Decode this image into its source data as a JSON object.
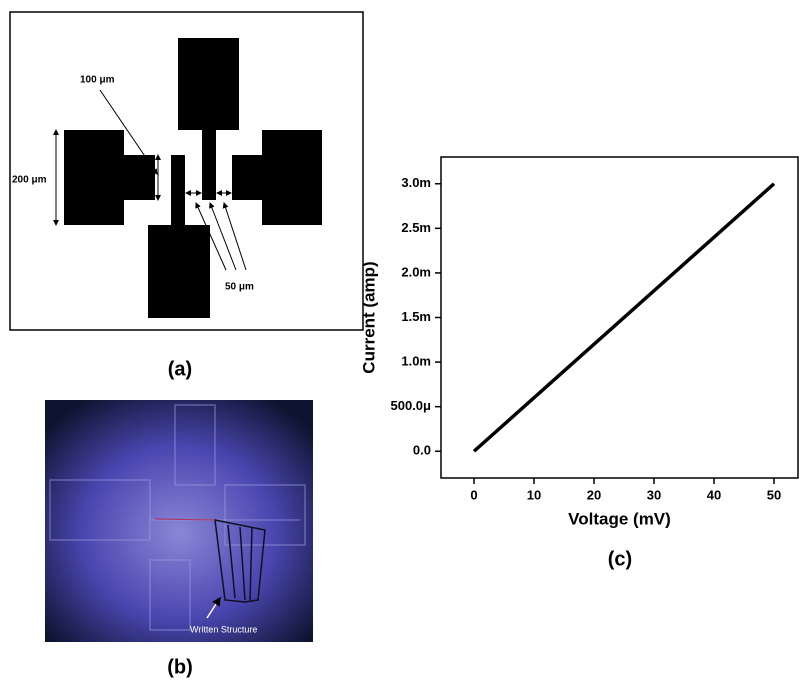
{
  "panel_a": {
    "label": "(a)",
    "annotations": [
      "100 μm",
      "200 μm",
      "50 μm"
    ]
  },
  "panel_b": {
    "label": "(b)",
    "annotation": "Written Structure"
  },
  "chart_data": {
    "type": "line",
    "panel_label": "(c)",
    "x_label": "Voltage (mV)",
    "y_label": "Current (amp)",
    "x": [
      0,
      50
    ],
    "series": [
      {
        "color": "#000000",
        "values": [
          0,
          0.003
        ]
      }
    ],
    "xlim": [
      -5.5,
      54
    ],
    "ylim": [
      -0.0003,
      0.0033
    ],
    "xticks": [
      0,
      10,
      20,
      30,
      40,
      50
    ],
    "yticks": [
      {
        "value": 0,
        "label": "0.0"
      },
      {
        "value": 0.0005,
        "label": "500.0μ"
      },
      {
        "value": 0.001,
        "label": "1.0m"
      },
      {
        "value": 0.0015,
        "label": "1.5m"
      },
      {
        "value": 0.002,
        "label": "2.0m"
      },
      {
        "value": 0.0025,
        "label": "2.5m"
      },
      {
        "value": 0.003,
        "label": "3.0m"
      }
    ]
  }
}
